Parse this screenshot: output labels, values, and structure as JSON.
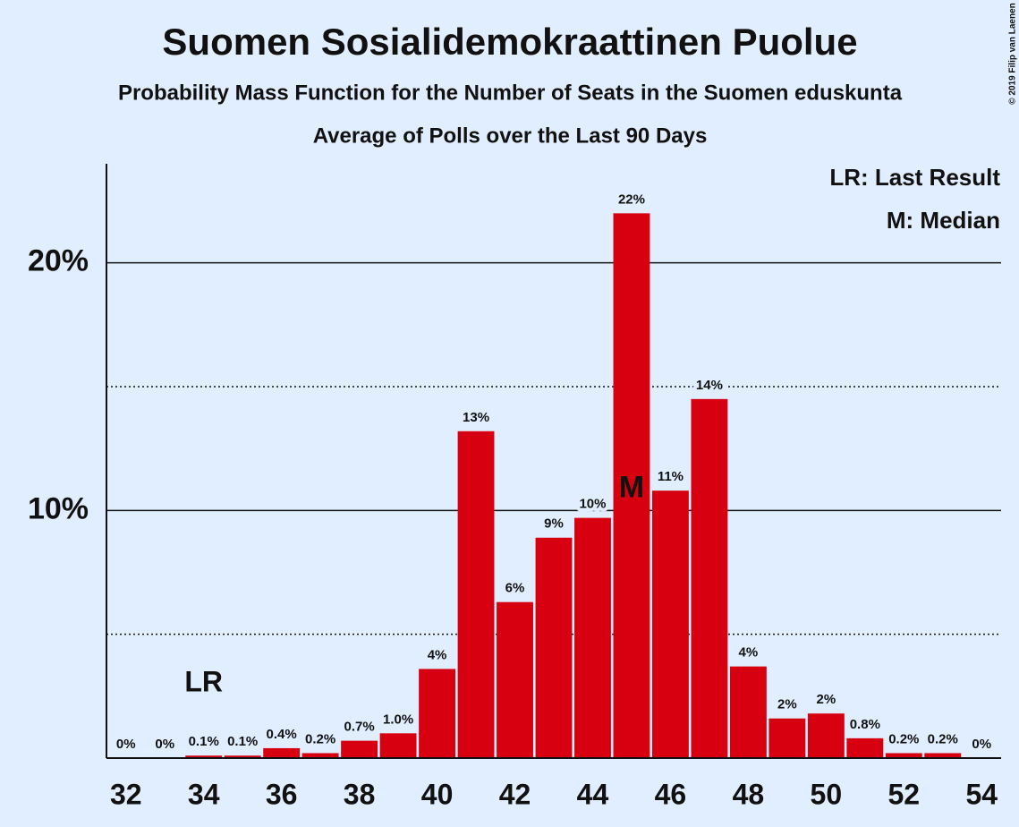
{
  "chart_data": {
    "type": "bar",
    "title": "Suomen Sosialidemokraattinen Puolue",
    "subtitle": "Probability Mass Function for the Number of Seats in the Suomen eduskunta",
    "subtitle2": "Average of Polls over the Last 90 Days",
    "copyright": "© 2019 Filip van Laenen",
    "legend": [
      "LR: Last Result",
      "M: Median"
    ],
    "x": [
      32,
      33,
      34,
      35,
      36,
      37,
      38,
      39,
      40,
      41,
      42,
      43,
      44,
      45,
      46,
      47,
      48,
      49,
      50,
      51,
      52,
      53,
      54
    ],
    "values": [
      0,
      0,
      0.1,
      0.1,
      0.4,
      0.2,
      0.7,
      1.0,
      3.6,
      13.2,
      6.3,
      8.9,
      9.7,
      22.0,
      10.8,
      14.5,
      3.7,
      1.6,
      1.8,
      0.8,
      0.2,
      0.2,
      0
    ],
    "value_labels": [
      "0%",
      "0%",
      "0.1%",
      "0.1%",
      "0.4%",
      "0.2%",
      "0.7%",
      "1.0%",
      "4%",
      "13%",
      "6%",
      "9%",
      "10%",
      "22%",
      "11%",
      "14%",
      "4%",
      "2%",
      "2%",
      "0.8%",
      "0.2%",
      "0.2%",
      "0%"
    ],
    "color": "#d70010",
    "annotations": [
      {
        "text": "LR",
        "x": 34
      },
      {
        "text": "M",
        "x": 45
      }
    ],
    "xlim": [
      31.5,
      54.5
    ],
    "xticks": [
      32,
      34,
      36,
      38,
      40,
      42,
      44,
      46,
      48,
      50,
      52,
      54
    ],
    "ylim": [
      0,
      24
    ],
    "yticks": [
      {
        "value": 10,
        "label": "10%"
      },
      {
        "value": 20,
        "label": "20%"
      }
    ],
    "minor_yticks": [
      5,
      15
    ],
    "grid": true
  }
}
